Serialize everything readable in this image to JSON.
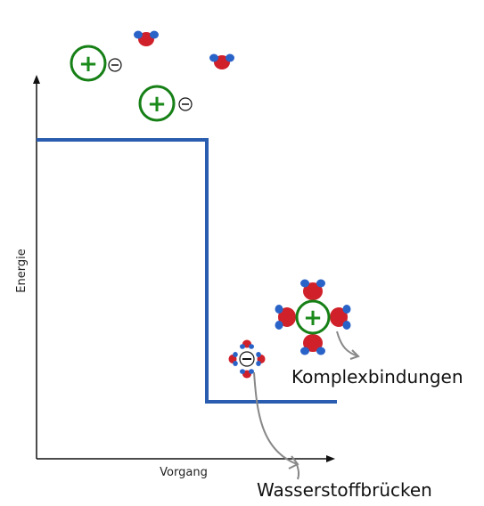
{
  "axes": {
    "y_label": "Energie",
    "x_label": "Vorgang"
  },
  "labels": {
    "complex": "Komplexbindungen",
    "hbond": "Wasserstoffbrücken"
  },
  "ions": {
    "cation_symbol": "+",
    "anion_symbol": "−"
  },
  "colors": {
    "energy_line": "#2a5db0",
    "cation_ring": "#168016",
    "oxygen": "#d0202a",
    "hydrogen": "#2a63c8",
    "axis": "#111111",
    "arrow": "#888888"
  }
}
